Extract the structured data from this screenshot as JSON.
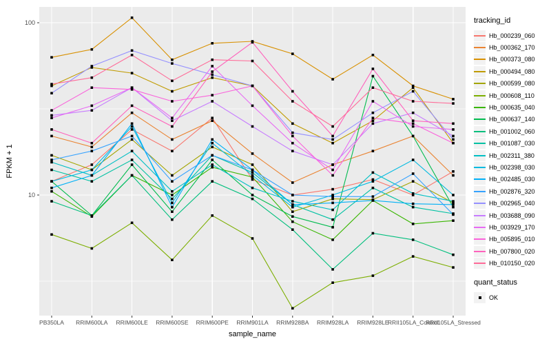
{
  "chart_data": {
    "type": "line",
    "title": "",
    "xlabel": "sample_name",
    "ylabel": "FPKM + 1",
    "y_scale": "log10",
    "y_ticks": [
      10,
      100
    ],
    "y_minor_ticks": [
      3.162,
      31.623
    ],
    "ylim": [
      2,
      124
    ],
    "grid": true,
    "panel_bg": "#EBEBEB",
    "gridline_color": "#FFFFFF",
    "point_marker": "black-square",
    "legend_position": "right",
    "categories": [
      "PB350LA",
      "RRIM600LA",
      "RRIM600LE",
      "RRIM600SE",
      "RRIM600PE",
      "RRIM901LA",
      "RRIM928BA",
      "RRIM928LA",
      "RRIM928LE",
      "RRII105LA_Control",
      "RRII105LA_Stressed"
    ],
    "series": [
      {
        "name": "Hb_000239_060",
        "color": "#F8766D",
        "values": [
          12,
          15,
          24,
          18,
          28,
          12.3,
          10,
          10.8,
          12.3,
          10,
          13.7
        ]
      },
      {
        "name": "Hb_000362_170",
        "color": "#EA8331",
        "values": [
          22,
          19,
          30,
          21,
          27,
          17.4,
          11.8,
          15,
          18,
          22,
          13
        ]
      },
      {
        "name": "Hb_000373_080",
        "color": "#D89000",
        "values": [
          63,
          70,
          107,
          61,
          76,
          78,
          66,
          47,
          65,
          43,
          36
        ]
      },
      {
        "name": "Hb_000494_080",
        "color": "#C09B00",
        "values": [
          43,
          55,
          51,
          40,
          48,
          43,
          26,
          20,
          27,
          42,
          20
        ]
      },
      {
        "name": "Hb_000599_080",
        "color": "#A3A500",
        "values": [
          17,
          14,
          21,
          13,
          19,
          15,
          8,
          9.5,
          9.4,
          12,
          9
        ]
      },
      {
        "name": "Hb_000608_110",
        "color": "#7CAE00",
        "values": [
          5.9,
          4.9,
          6.9,
          4.2,
          7.6,
          5.6,
          2.2,
          3.1,
          3.4,
          4.4,
          3.8
        ]
      },
      {
        "name": "Hb_000635_040",
        "color": "#39B600",
        "values": [
          10.5,
          7.5,
          13,
          10,
          14.5,
          12.7,
          7,
          5.5,
          9.3,
          6.8,
          7.1
        ]
      },
      {
        "name": "Hb_000637_140",
        "color": "#00BB4E",
        "values": [
          12,
          7.6,
          15,
          8,
          16,
          10,
          7.5,
          6.5,
          49,
          22,
          8.5
        ]
      },
      {
        "name": "Hb_001002_060",
        "color": "#00BF7D",
        "values": [
          9.2,
          7.6,
          13,
          7.2,
          12,
          9.5,
          6.3,
          3.7,
          6,
          5.5,
          4.5
        ]
      },
      {
        "name": "Hb_001087_030",
        "color": "#00C1A3",
        "values": [
          14,
          12,
          16,
          9.5,
          17,
          13.5,
          8.8,
          7.2,
          11,
          8.5,
          7.8
        ]
      },
      {
        "name": "Hb_002311_380",
        "color": "#00BFC4",
        "values": [
          15.5,
          13,
          18,
          10.5,
          15,
          11,
          9.2,
          8.2,
          13.5,
          10.2,
          9.2
        ]
      },
      {
        "name": "Hb_002398_030",
        "color": "#00BAE0",
        "values": [
          12,
          14,
          25,
          9,
          20,
          13,
          8.5,
          10,
          12,
          16,
          10
        ]
      },
      {
        "name": "Hb_002485_030",
        "color": "#00B0F6",
        "values": [
          11,
          13,
          26,
          8.5,
          21,
          14,
          8.8,
          9,
          9.3,
          8.9,
          8.8
        ]
      },
      {
        "name": "Hb_002876_320",
        "color": "#35A2FF",
        "values": [
          16,
          18,
          22,
          12,
          17,
          14,
          10,
          9.8,
          9.8,
          13.3,
          7.7
        ]
      },
      {
        "name": "Hb_002965_040",
        "color": "#9590FF",
        "values": [
          39,
          56,
          69,
          58,
          50,
          43,
          23,
          21,
          30,
          40,
          21
        ]
      },
      {
        "name": "Hb_003688_090",
        "color": "#C77CFF",
        "values": [
          29,
          31,
          42,
          27,
          35,
          25,
          18,
          15,
          26,
          30,
          22
        ]
      },
      {
        "name": "Hb_003929_170",
        "color": "#E76BF3",
        "values": [
          28,
          33,
          42,
          28,
          56,
          33,
          20,
          14,
          35,
          25,
          24
        ]
      },
      {
        "name": "Hb_005895_010",
        "color": "#FA62DB",
        "values": [
          31,
          42,
          41,
          35,
          38,
          43,
          22,
          13,
          28,
          26,
          20
        ]
      },
      {
        "name": "Hb_007800_020",
        "color": "#FF62BC",
        "values": [
          24,
          20,
          33,
          25,
          52,
          77,
          40,
          22,
          54,
          27,
          26
        ]
      },
      {
        "name": "Hb_010150_020",
        "color": "#FF6A98",
        "values": [
          44,
          48,
          65,
          46,
          61,
          60,
          35,
          25,
          42,
          35,
          34
        ]
      }
    ]
  },
  "legend": {
    "tracking_title": "tracking_id",
    "quant_title": "quant_status",
    "quant_items": [
      {
        "label": "OK",
        "marker": "black-square"
      }
    ]
  }
}
